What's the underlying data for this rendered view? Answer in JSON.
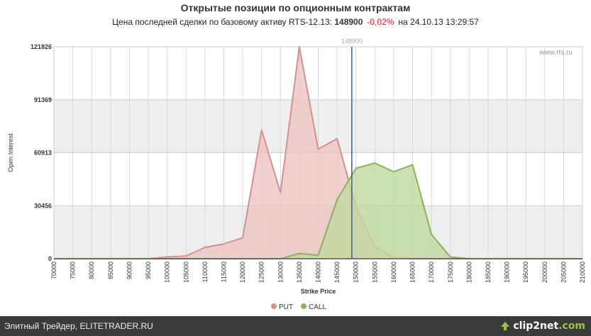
{
  "header": {
    "title": "Открытые позиции по опционным контрактам",
    "subtitle_prefix": "Цена последней сделки по базовому активу RTS-12.13:",
    "price": "148900",
    "change": "-0,02%",
    "datetime_prefix": "на",
    "datetime": "24.10.13 13:29:57"
  },
  "watermark": "www.rts.ru",
  "footer": {
    "text": "Элитный Трейдер, ELITETRADER.RU",
    "logo_main": "clip2net",
    "logo_suffix": ".com"
  },
  "colors": {
    "put_fill": "#ecc4c2",
    "put_line": "#d4908e",
    "call_fill": "#c0d89f",
    "call_line": "#8cb05c",
    "band": "#eeeeee",
    "price_line": "#3a5f8a"
  },
  "chart_data": {
    "type": "area",
    "xlabel": "Strike Price",
    "ylabel": "Open Interest",
    "x": [
      70000,
      75000,
      80000,
      85000,
      90000,
      95000,
      100000,
      105000,
      110000,
      115000,
      120000,
      125000,
      130000,
      135000,
      140000,
      145000,
      150000,
      155000,
      160000,
      165000,
      170000,
      175000,
      180000,
      185000,
      190000,
      195000,
      200000,
      205000,
      210000
    ],
    "xlim": [
      70000,
      210000
    ],
    "ylim": [
      0,
      121826
    ],
    "yticks": [
      0,
      30456,
      60913,
      91369,
      121826
    ],
    "price_marker": {
      "value": 148900,
      "label": "148900"
    },
    "grid": true,
    "legend": "bottom",
    "series": [
      {
        "name": "PUT",
        "values": [
          0,
          0,
          0,
          0,
          0,
          0,
          1000,
          1600,
          6500,
          8500,
          12000,
          74000,
          38000,
          121826,
          63000,
          69000,
          30000,
          7000,
          600,
          0,
          0,
          0,
          0,
          0,
          0,
          0,
          0,
          0,
          0
        ]
      },
      {
        "name": "CALL",
        "values": [
          0,
          0,
          0,
          0,
          0,
          0,
          0,
          0,
          0,
          0,
          0,
          0,
          0,
          3000,
          2000,
          34000,
          52000,
          55000,
          50000,
          54000,
          14000,
          1000,
          0,
          0,
          0,
          0,
          0,
          0,
          0
        ]
      }
    ]
  }
}
